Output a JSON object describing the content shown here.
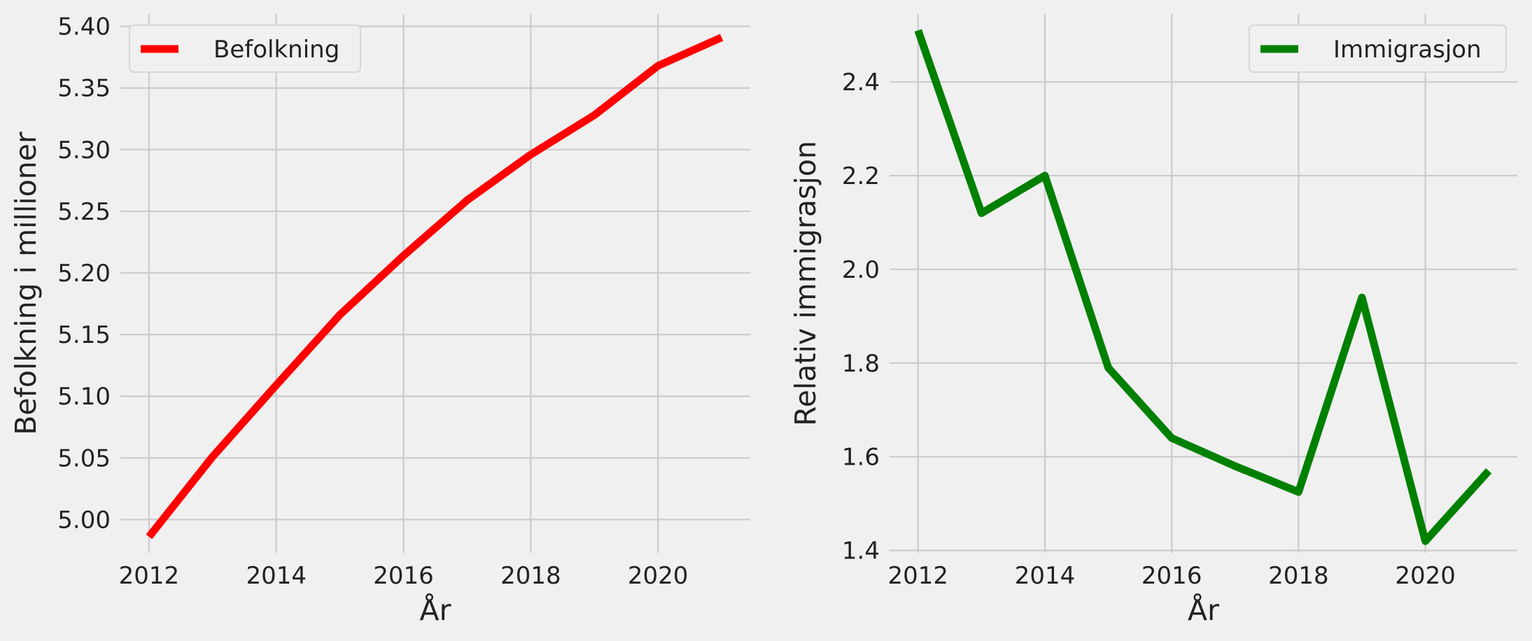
{
  "chart_data": [
    {
      "type": "line",
      "xlabel": "År",
      "ylabel": "Befolkning i millioner",
      "x": [
        2012,
        2013,
        2014,
        2015,
        2016,
        2017,
        2018,
        2019,
        2020,
        2021
      ],
      "series": [
        {
          "name": "Befolkning",
          "color": "#ff0000",
          "values": [
            4.986,
            5.051,
            5.109,
            5.166,
            5.214,
            5.259,
            5.296,
            5.328,
            5.368,
            5.391
          ]
        }
      ],
      "xlim": [
        2011.55,
        2021.45
      ],
      "ylim": [
        4.973,
        5.41
      ],
      "xticks": [
        2012,
        2014,
        2016,
        2018,
        2020
      ],
      "xtick_labels": [
        "2012",
        "2014",
        "2016",
        "2018",
        "2020"
      ],
      "yticks": [
        5.0,
        5.05,
        5.1,
        5.15,
        5.2,
        5.25,
        5.3,
        5.35,
        5.4
      ],
      "ytick_labels": [
        "5.00",
        "5.05",
        "5.10",
        "5.15",
        "5.20",
        "5.25",
        "5.30",
        "5.35",
        "5.40"
      ],
      "grid": true,
      "legend_position": "top-left"
    },
    {
      "type": "line",
      "xlabel": "År",
      "ylabel": "Relativ immigrasjon",
      "x": [
        2012,
        2013,
        2014,
        2015,
        2016,
        2017,
        2018,
        2019,
        2020,
        2021
      ],
      "series": [
        {
          "name": "Immigrasjon",
          "color": "#008000",
          "values": [
            2.51,
            2.12,
            2.2,
            1.79,
            1.64,
            1.58,
            1.525,
            1.94,
            1.42,
            1.57
          ]
        }
      ],
      "xlim": [
        2011.55,
        2021.45
      ],
      "ylim": [
        1.395,
        2.545
      ],
      "xticks": [
        2012,
        2014,
        2016,
        2018,
        2020
      ],
      "xtick_labels": [
        "2012",
        "2014",
        "2016",
        "2018",
        "2020"
      ],
      "yticks": [
        1.4,
        1.6,
        1.8,
        2.0,
        2.2,
        2.4
      ],
      "ytick_labels": [
        "1.4",
        "1.6",
        "1.8",
        "2.0",
        "2.2",
        "2.4"
      ],
      "grid": true,
      "legend_position": "top-right"
    }
  ]
}
